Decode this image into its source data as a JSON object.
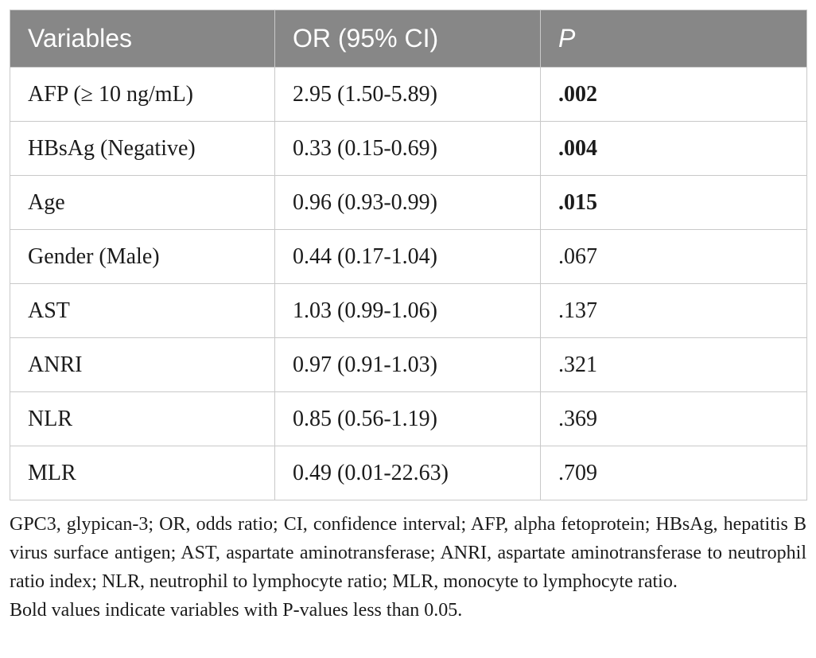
{
  "table": {
    "columns": [
      "Variables",
      "OR (95% CI)",
      "P"
    ],
    "rows": [
      {
        "variable": "AFP (≥ 10 ng/mL)",
        "or_ci": "2.95 (1.50-5.89)",
        "p": ".002",
        "significant": true
      },
      {
        "variable": "HBsAg (Negative)",
        "or_ci": "0.33 (0.15-0.69)",
        "p": ".004",
        "significant": true
      },
      {
        "variable": "Age",
        "or_ci": "0.96 (0.93-0.99)",
        "p": ".015",
        "significant": true
      },
      {
        "variable": "Gender (Male)",
        "or_ci": "0.44 (0.17-1.04)",
        "p": ".067",
        "significant": false
      },
      {
        "variable": "AST",
        "or_ci": "1.03 (0.99-1.06)",
        "p": ".137",
        "significant": false
      },
      {
        "variable": "ANRI",
        "or_ci": "0.97 (0.91-1.03)",
        "p": ".321",
        "significant": false
      },
      {
        "variable": "NLR",
        "or_ci": "0.85 (0.56-1.19)",
        "p": ".369",
        "significant": false
      },
      {
        "variable": "MLR",
        "or_ci": "0.49 (0.01-22.63)",
        "p": ".709",
        "significant": false
      }
    ]
  },
  "footnotes": {
    "abbreviations": "GPC3, glypican-3; OR, odds ratio; CI, confidence interval; AFP, alpha fetoprotein; HBsAg, hepatitis B virus surface antigen; AST, aspartate aminotransferase; ANRI, aspartate aminotransferase to neutrophil ratio index; NLR, neutrophil to lymphocyte ratio; MLR, monocyte to lymphocyte ratio.",
    "bold_note": "Bold values indicate variables with P-values less than 0.05."
  },
  "colors": {
    "header_bg": "#878787",
    "header_text": "#ffffff",
    "body_text": "#1b1b1b",
    "border": "#c9c9c9"
  }
}
